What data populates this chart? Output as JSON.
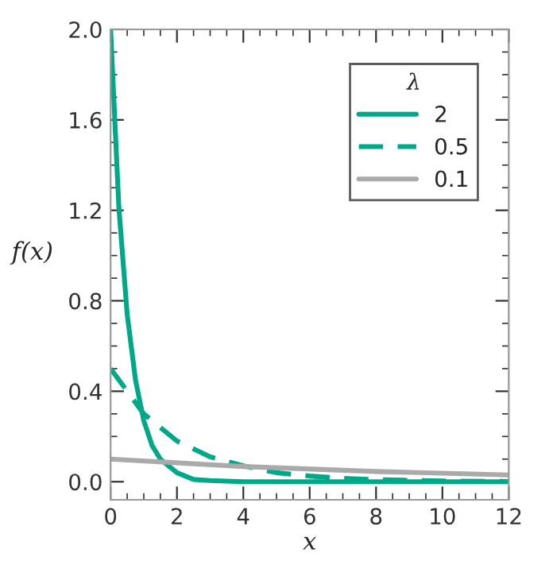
{
  "chart_data": {
    "type": "line",
    "xlabel": "x",
    "ylabel": "f(x)",
    "legend_title": "λ",
    "legend": "top right",
    "xlim": [
      0,
      12
    ],
    "xticks": [
      0,
      2,
      4,
      6,
      8,
      10,
      12
    ],
    "ylim": [
      -0.08,
      2.0
    ],
    "yticks": [
      {
        "value": 0,
        "label": "0.0"
      },
      0.4,
      0.8,
      1.2,
      1.6,
      {
        "value": 2,
        "label": "2.0"
      }
    ],
    "grid": false,
    "marker": "none",
    "series": [
      {
        "name": "2",
        "color": "#00a88a",
        "line_style": "solid",
        "x": [
          0,
          0.25,
          0.5,
          0.75,
          1,
          1.25,
          1.5,
          2,
          2.5,
          3,
          4,
          6,
          8,
          12
        ],
        "values": [
          2.0,
          1.21,
          0.74,
          0.45,
          0.27,
          0.16,
          0.1,
          0.04,
          0.01,
          0.005,
          0.0,
          0.0,
          0.0,
          0.0
        ]
      },
      {
        "name": "0.5",
        "color": "#00a88a",
        "line_style": "dashed",
        "x": [
          0,
          1,
          2,
          3,
          4,
          5,
          6,
          7,
          8,
          10,
          12
        ],
        "values": [
          0.5,
          0.3,
          0.18,
          0.11,
          0.07,
          0.04,
          0.025,
          0.015,
          0.009,
          0.003,
          0.001
        ]
      },
      {
        "name": "0.1",
        "color": "#aaaaaa",
        "line_style": "solid",
        "x": [
          0,
          4,
          8,
          12
        ],
        "values": [
          0.1,
          0.067,
          0.045,
          0.03
        ]
      }
    ]
  }
}
